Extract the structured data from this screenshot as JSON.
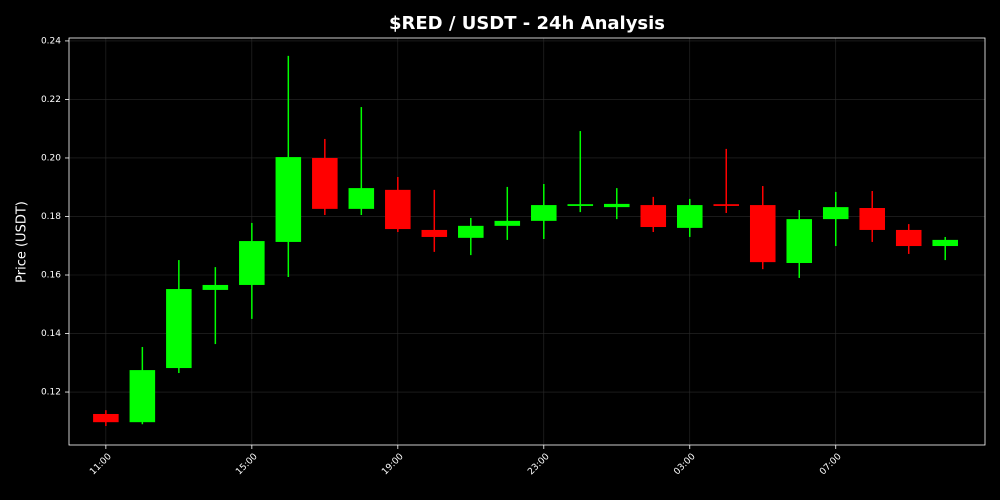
{
  "chart_data": {
    "type": "candlestick",
    "title": "$RED / USDT - 24h Analysis",
    "y_label": "Price (USDT)",
    "categories": [
      "11:00",
      null,
      null,
      null,
      "15:00",
      null,
      null,
      null,
      "19:00",
      null,
      null,
      null,
      "23:00",
      null,
      null,
      null,
      "03:00",
      null,
      null,
      null,
      "07:00",
      null,
      null,
      null
    ],
    "open": [
      0.1125,
      0.1097,
      0.1282,
      0.1549,
      0.1566,
      0.1713,
      0.2,
      0.1826,
      0.1891,
      0.1754,
      0.1727,
      0.1768,
      0.1785,
      0.1836,
      0.1832,
      0.1839,
      0.1761,
      0.1842,
      0.1839,
      0.1641,
      0.1791,
      0.1829,
      0.1754,
      0.1699
    ],
    "high": [
      0.1138,
      0.1354,
      0.1651,
      0.1627,
      0.1778,
      0.2349,
      0.2065,
      0.2174,
      0.1935,
      0.1891,
      0.1795,
      0.1901,
      0.1911,
      0.2092,
      0.1897,
      0.1867,
      0.186,
      0.2031,
      0.1904,
      0.1822,
      0.1884,
      0.1887,
      0.1774,
      0.173
    ],
    "low": [
      0.1084,
      0.109,
      0.1265,
      0.1364,
      0.145,
      0.1593,
      0.1805,
      0.1805,
      0.1747,
      0.1679,
      0.1668,
      0.172,
      0.1723,
      0.1815,
      0.1791,
      0.1747,
      0.173,
      0.1812,
      0.162,
      0.159,
      0.1699,
      0.1713,
      0.1672,
      0.1651
    ],
    "close": [
      0.1097,
      0.1275,
      0.1552,
      0.1566,
      0.1716,
      0.2003,
      0.1826,
      0.1897,
      0.1757,
      0.173,
      0.1768,
      0.1785,
      0.1839,
      0.1842,
      0.1843,
      0.1764,
      0.1839,
      0.1836,
      0.1644,
      0.1791,
      0.1832,
      0.1754,
      0.1699,
      0.172
    ],
    "up_color": "#00ff00",
    "down_color": "#ff0000",
    "ylim": [
      0.1019,
      0.241
    ],
    "yticks": [
      0.12,
      0.14,
      0.16,
      0.18,
      {
        "value": 0.2,
        "label": "0.20"
      },
      0.22,
      0.24
    ],
    "grid": true
  }
}
